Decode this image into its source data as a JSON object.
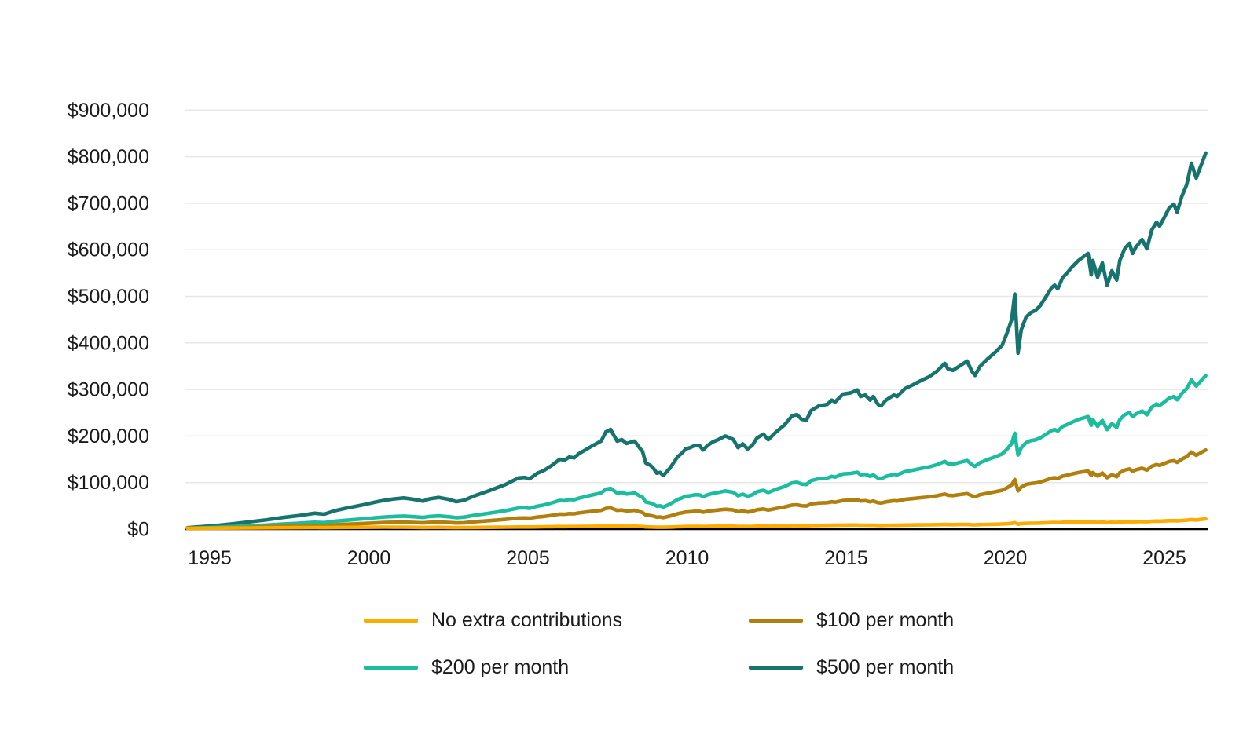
{
  "page": {
    "background": "#ffffff",
    "text_color": "#1b1b1b"
  },
  "chart_data": {
    "type": "line",
    "title": "",
    "xlabel": "",
    "ylabel": "",
    "x_axis": {
      "ticks": [
        1995,
        2000,
        2005,
        2010,
        2015,
        2020,
        2025
      ],
      "range": [
        1994.26,
        2026.45
      ]
    },
    "y_axis": {
      "tick_values": [
        0,
        100000,
        200000,
        300000,
        400000,
        500000,
        600000,
        700000,
        800000,
        900000
      ],
      "tick_labels": [
        "$0",
        "$100,000",
        "$200,000",
        "$300,000",
        "$400,000",
        "$500,000",
        "$600,000",
        "$700,000",
        "$800,000",
        "$900,000"
      ],
      "range": [
        0,
        960000
      ],
      "grid": true,
      "grid_color": "#e7e7e7",
      "axis_line_color": "#000000"
    },
    "legend": {
      "position": "bottom",
      "columns": 2
    },
    "x": [
      1994.3,
      1994.8,
      1995.3,
      1995.8,
      1996.3,
      1996.8,
      1997.3,
      1997.8,
      1998.3,
      1998.6,
      1998.9,
      1999.3,
      1999.8,
      2000.2,
      2000.5,
      2000.8,
      2001.1,
      2001.4,
      2001.7,
      2001.9,
      2002.2,
      2002.5,
      2002.75,
      2003.0,
      2003.3,
      2003.8,
      2004.3,
      2004.7,
      2004.9,
      2005.05,
      2005.3,
      2005.5,
      2005.75,
      2006.0,
      2006.15,
      2006.3,
      2006.45,
      2006.6,
      2006.8,
      2007.05,
      2007.3,
      2007.45,
      2007.6,
      2007.7,
      2007.8,
      2007.95,
      2008.1,
      2008.25,
      2008.35,
      2008.5,
      2008.6,
      2008.7,
      2008.85,
      2008.95,
      2009.05,
      2009.15,
      2009.25,
      2009.45,
      2009.6,
      2009.7,
      2009.85,
      2009.95,
      2010.1,
      2010.25,
      2010.4,
      2010.5,
      2010.65,
      2010.8,
      2011.0,
      2011.2,
      2011.45,
      2011.6,
      2011.75,
      2011.9,
      2012.05,
      2012.2,
      2012.4,
      2012.55,
      2012.8,
      2013.05,
      2013.3,
      2013.45,
      2013.6,
      2013.75,
      2013.9,
      2014.15,
      2014.4,
      2014.55,
      2014.65,
      2014.9,
      2015.15,
      2015.35,
      2015.45,
      2015.6,
      2015.75,
      2015.85,
      2016.0,
      2016.1,
      2016.25,
      2016.5,
      2016.6,
      2016.85,
      2017.1,
      2017.35,
      2017.6,
      2017.85,
      2018.1,
      2018.2,
      2018.35,
      2018.6,
      2018.8,
      2018.95,
      2019.05,
      2019.2,
      2019.45,
      2019.7,
      2019.9,
      2020.05,
      2020.2,
      2020.3,
      2020.4,
      2020.5,
      2020.65,
      2020.8,
      2020.95,
      2021.1,
      2021.25,
      2021.45,
      2021.55,
      2021.65,
      2021.8,
      2021.95,
      2022.1,
      2022.3,
      2022.6,
      2022.7,
      2022.75,
      2022.9,
      2023.05,
      2023.2,
      2023.35,
      2023.5,
      2023.6,
      2023.75,
      2023.9,
      2024.0,
      2024.1,
      2024.3,
      2024.45,
      2024.6,
      2024.75,
      2024.85,
      2025.0,
      2025.15,
      2025.3,
      2025.4,
      2025.55,
      2025.7,
      2025.85,
      2026.0,
      2026.3
    ],
    "series": [
      {
        "name": "No extra contributions",
        "color": "#FCAB00",
        "values": [
          2000,
          2100,
          2200,
          2400,
          2600,
          2800,
          3000,
          3200,
          3400,
          3200,
          3500,
          3700,
          3900,
          4100,
          4200,
          4100,
          4000,
          3800,
          3600,
          3700,
          3800,
          3500,
          3200,
          3300,
          3500,
          3900,
          4200,
          4500,
          4600,
          4500,
          4800,
          5000,
          5200,
          5500,
          5400,
          5600,
          5500,
          5700,
          5900,
          6100,
          6300,
          6700,
          6800,
          6500,
          6200,
          6300,
          6000,
          6100,
          6200,
          5800,
          5600,
          4800,
          4600,
          4400,
          4100,
          4200,
          4000,
          4400,
          4800,
          5100,
          5400,
          5600,
          5700,
          5800,
          5800,
          5500,
          5800,
          6000,
          6200,
          6400,
          6200,
          5600,
          5900,
          5500,
          5800,
          6200,
          6400,
          6000,
          6500,
          6900,
          7400,
          7500,
          7200,
          7100,
          7700,
          8000,
          8100,
          8300,
          8200,
          8600,
          8700,
          8800,
          8400,
          8500,
          8200,
          8400,
          7900,
          7800,
          8100,
          8400,
          8300,
          8700,
          8900,
          9100,
          9300,
          9600,
          10000,
          9700,
          9600,
          9900,
          10100,
          9500,
          9200,
          9700,
          10100,
          10500,
          10900,
          11500,
          12300,
          13800,
          10600,
          11600,
          12300,
          12600,
          12700,
          13000,
          13400,
          14000,
          14100,
          13900,
          14500,
          14800,
          15100,
          15500,
          15900,
          14600,
          15400,
          14400,
          15200,
          13900,
          14700,
          14200,
          15300,
          15900,
          16200,
          15600,
          15900,
          16300,
          15800,
          16800,
          17200,
          17000,
          17500,
          18000,
          18200,
          17800,
          18600,
          19200,
          20400,
          19600,
          22000
        ]
      },
      {
        "name": "$100 per month",
        "color": "#B0800F",
        "values": [
          1400,
          1900,
          2600,
          3400,
          4200,
          5100,
          6200,
          7100,
          8200,
          7700,
          9200,
          10500,
          12000,
          13200,
          14100,
          14600,
          15000,
          14300,
          13400,
          14500,
          15100,
          14200,
          13100,
          13700,
          15600,
          18200,
          20900,
          23800,
          24000,
          23400,
          25900,
          27200,
          29500,
          32200,
          31800,
          33200,
          32800,
          34700,
          36400,
          38400,
          40300,
          44500,
          45500,
          42800,
          40300,
          40900,
          39200,
          39800,
          40300,
          37300,
          35600,
          30300,
          29200,
          27800,
          25600,
          26100,
          24600,
          27800,
          30900,
          33000,
          35000,
          36600,
          37300,
          38300,
          38100,
          36200,
          38300,
          39800,
          41100,
          42600,
          41100,
          37200,
          39000,
          36600,
          38300,
          41700,
          43400,
          40800,
          44400,
          47400,
          51600,
          52200,
          50100,
          49600,
          54100,
          56200,
          56800,
          58700,
          57900,
          61400,
          62100,
          63300,
          60400,
          61000,
          58700,
          60400,
          56800,
          56100,
          58600,
          61000,
          60300,
          63900,
          65600,
          67400,
          69100,
          71600,
          75200,
          72700,
          72000,
          74400,
          76200,
          71600,
          69700,
          73700,
          77200,
          80400,
          83400,
          88600,
          94900,
          106500,
          82200,
          90200,
          95900,
          98000,
          99100,
          101200,
          104600,
          109200,
          110400,
          108800,
          113800,
          116100,
          118600,
          121600,
          124800,
          115000,
          121600,
          114000,
          120500,
          110400,
          116900,
          112700,
          121500,
          126800,
          129300,
          124600,
          127400,
          130900,
          126700,
          135100,
          138700,
          137000,
          141000,
          145200,
          146900,
          143300,
          150400,
          155700,
          165400,
          158600,
          170000
        ]
      },
      {
        "name": "$200 per month",
        "color": "#1CBD9F",
        "values": [
          1800,
          2800,
          4100,
          5500,
          7200,
          8800,
          10900,
          12600,
          14600,
          13800,
          16700,
          19100,
          22000,
          24400,
          26100,
          27200,
          28000,
          26700,
          25100,
          27100,
          28300,
          26700,
          24600,
          25800,
          29500,
          34400,
          39700,
          45400,
          45800,
          44600,
          49400,
          51900,
          56400,
          61700,
          60800,
          63700,
          62900,
          66500,
          69800,
          73800,
          77500,
          85600,
          87600,
          82400,
          77500,
          78700,
          75400,
          76600,
          77500,
          71700,
          68500,
          58200,
          56200,
          53300,
          49200,
          50100,
          47200,
          53300,
          59400,
          63500,
          67200,
          70500,
          71700,
          73700,
          73300,
          69700,
          73700,
          76600,
          79100,
          81900,
          79100,
          71700,
          75000,
          70500,
          73700,
          80300,
          83500,
          78600,
          85600,
          91300,
          99400,
          100700,
          96600,
          95700,
          104300,
          108400,
          109600,
          113300,
          111700,
          118600,
          119800,
          122200,
          116500,
          117800,
          113300,
          116500,
          109600,
          108300,
          113200,
          117700,
          116500,
          123400,
          126700,
          130300,
          133600,
          138500,
          145400,
          140500,
          139300,
          143800,
          147400,
          138400,
          134800,
          142500,
          149400,
          155600,
          161300,
          171400,
          183700,
          206100,
          159200,
          174700,
          185700,
          189800,
          191800,
          195900,
          202400,
          211400,
          213800,
          210600,
          220400,
          224800,
          229700,
          235500,
          241600,
          222800,
          235400,
          220700,
          233400,
          213800,
          226400,
          218300,
          235400,
          245600,
          250500,
          241500,
          246800,
          253700,
          245500,
          261800,
          268800,
          265500,
          273300,
          281400,
          284700,
          277700,
          291600,
          301800,
          320500,
          307500,
          329500
        ]
      },
      {
        "name": "$500 per month",
        "color": "#17736D",
        "values": [
          3000,
          5500,
          8500,
          12000,
          16000,
          20000,
          25000,
          29000,
          34000,
          32000,
          39000,
          45000,
          52000,
          58000,
          62000,
          65000,
          67000,
          64000,
          60000,
          65000,
          68000,
          64000,
          59000,
          62000,
          71000,
          83000,
          96000,
          110000,
          111000,
          108000,
          120000,
          126000,
          137000,
          150000,
          148000,
          155000,
          153000,
          162000,
          170000,
          180000,
          189000,
          209000,
          214000,
          201000,
          189000,
          192000,
          184000,
          187000,
          189000,
          175000,
          167000,
          142000,
          137000,
          130000,
          120000,
          122000,
          115000,
          130000,
          145000,
          155000,
          164000,
          172000,
          175000,
          180000,
          179000,
          170000,
          180000,
          187000,
          193000,
          200000,
          193000,
          175000,
          183000,
          172000,
          180000,
          196000,
          204000,
          192000,
          209000,
          223000,
          243000,
          246000,
          236000,
          234000,
          255000,
          265000,
          268000,
          277000,
          273000,
          290000,
          293000,
          299000,
          285000,
          288000,
          277000,
          285000,
          268000,
          265000,
          277000,
          288000,
          285000,
          302000,
          310000,
          319000,
          327000,
          339000,
          356000,
          344000,
          341000,
          352000,
          361000,
          339000,
          330000,
          349000,
          366000,
          381000,
          395000,
          420000,
          450000,
          505000,
          378000,
          428000,
          455000,
          465000,
          470000,
          480000,
          496000,
          518000,
          524000,
          516000,
          540000,
          551000,
          563000,
          577000,
          592000,
          546000,
          577000,
          541000,
          572000,
          524000,
          555000,
          535000,
          577000,
          602000,
          614000,
          592000,
          605000,
          622000,
          602000,
          642000,
          659000,
          651000,
          670000,
          690000,
          698000,
          681000,
          715000,
          740000,
          786000,
          754000,
          808000
        ]
      }
    ]
  }
}
